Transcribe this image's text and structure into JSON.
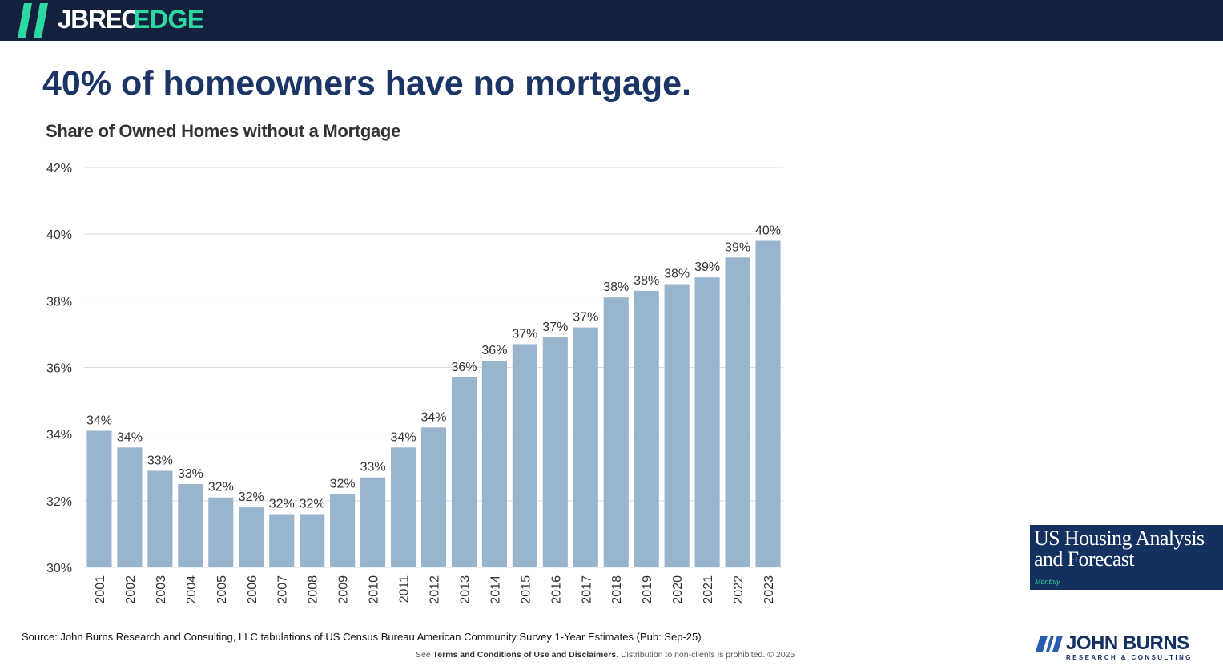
{
  "header": {
    "brand_primary": "JBREC",
    "brand_accent": "EDGE"
  },
  "headline": "40% of homeowners have no mortgage.",
  "chart_data": {
    "type": "bar",
    "title": "Share of Owned Homes without a Mortgage",
    "xlabel": "",
    "ylabel": "",
    "ylim": [
      30,
      42
    ],
    "yticks": [
      30,
      32,
      34,
      36,
      38,
      40,
      42
    ],
    "ytick_labels": [
      "30%",
      "32%",
      "34%",
      "36%",
      "38%",
      "40%",
      "42%"
    ],
    "grid": true,
    "bar_color": "#99b4cd",
    "categories": [
      "2001",
      "2002",
      "2003",
      "2004",
      "2005",
      "2006",
      "2007",
      "2008",
      "2009",
      "2010",
      "2011",
      "2012",
      "2013",
      "2014",
      "2015",
      "2016",
      "2017",
      "2018",
      "2019",
      "2020",
      "2021",
      "2022",
      "2023"
    ],
    "values": [
      34.1,
      33.6,
      32.9,
      32.5,
      32.1,
      31.8,
      31.6,
      31.6,
      32.2,
      32.7,
      33.6,
      34.2,
      35.7,
      36.2,
      36.7,
      36.9,
      37.2,
      38.1,
      38.3,
      38.5,
      38.7,
      39.3,
      39.8
    ],
    "data_labels": [
      "34%",
      "34%",
      "33%",
      "33%",
      "32%",
      "32%",
      "32%",
      "32%",
      "32%",
      "33%",
      "34%",
      "34%",
      "36%",
      "36%",
      "37%",
      "37%",
      "37%",
      "38%",
      "38%",
      "38%",
      "39%",
      "39%",
      "40%"
    ]
  },
  "source_note": "Source: John Burns Research and Consulting, LLC tabulations of US Census Bureau American Community Survey 1-Year Estimates (Pub: Sep-25)",
  "disclaimer": {
    "prefix": "See ",
    "link": "Terms and Conditions of Use and Disclaimers",
    "suffix": ". Distribution to non-clients is prohibited. © 2025"
  },
  "report_badge": {
    "title_line1": "US Housing Analysis",
    "title_line2": "and Forecast",
    "frequency": "Monthly"
  },
  "logo": {
    "name": "JOHN BURNS",
    "tagline": "RESEARCH & CONSULTING"
  },
  "colors": {
    "navy": "#14213d",
    "brand_green": "#2bd9a0",
    "headline_blue": "#1b3566",
    "badge_blue": "#14305f"
  }
}
